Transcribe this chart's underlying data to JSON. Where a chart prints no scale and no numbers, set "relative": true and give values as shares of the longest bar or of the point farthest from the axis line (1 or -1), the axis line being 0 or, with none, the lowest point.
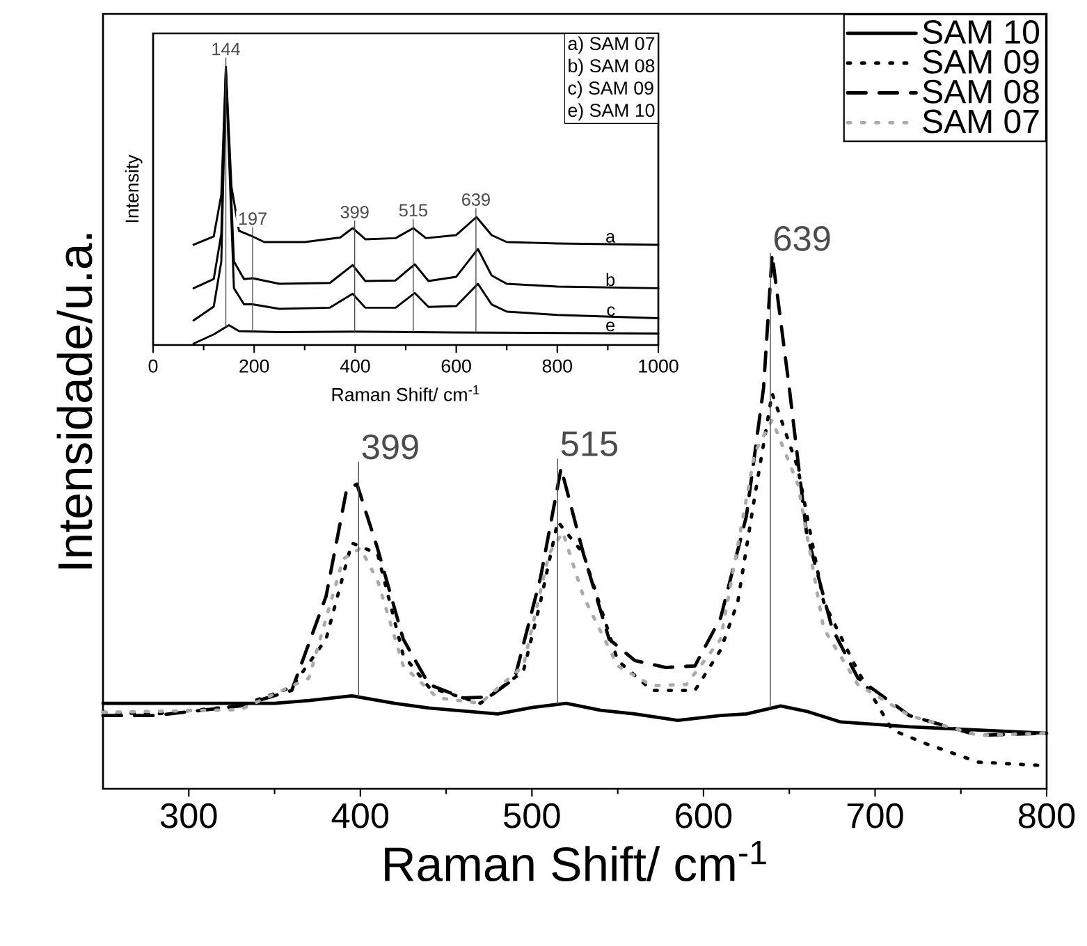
{
  "chart_data": [
    {
      "type": "line",
      "relative": true,
      "xlabel": "Raman Shift/ cm$^{-1}$",
      "ylabel": "Intensidade/u.a.",
      "xlim": [
        250,
        800
      ],
      "xticks": [
        300,
        400,
        500,
        600,
        700,
        800
      ],
      "legend": "top right",
      "series": [
        {
          "name": "SAM 10",
          "color": "#000000",
          "line_style": "solid",
          "x": [
            250,
            300,
            350,
            370,
            395,
            420,
            440,
            480,
            500,
            520,
            540,
            560,
            585,
            610,
            625,
            645,
            660,
            680,
            720,
            760,
            800
          ],
          "values": [
            0.16,
            0.16,
            0.16,
            0.165,
            0.174,
            0.16,
            0.151,
            0.14,
            0.152,
            0.16,
            0.147,
            0.14,
            0.128,
            0.137,
            0.14,
            0.155,
            0.145,
            0.125,
            0.116,
            0.11,
            0.104
          ]
        },
        {
          "name": "SAM 09",
          "color": "#000000",
          "line_style": "dotted",
          "x": [
            250,
            280,
            330,
            360,
            380,
            395,
            410,
            425,
            440,
            470,
            495,
            505,
            515,
            530,
            550,
            570,
            595,
            610,
            620,
            630,
            640,
            655,
            670,
            690,
            710,
            730,
            760,
            800
          ],
          "values": [
            0.143,
            0.14,
            0.155,
            0.19,
            0.28,
            0.46,
            0.44,
            0.25,
            0.19,
            0.16,
            0.22,
            0.35,
            0.5,
            0.44,
            0.24,
            0.184,
            0.184,
            0.26,
            0.35,
            0.55,
            0.74,
            0.6,
            0.35,
            0.22,
            0.11,
            0.084,
            0.05,
            0.043
          ]
        },
        {
          "name": "SAM 08",
          "color": "#000000",
          "line_style": "dashed",
          "x": [
            250,
            280,
            330,
            360,
            380,
            392,
            398,
            410,
            425,
            440,
            460,
            475,
            490,
            505,
            517,
            530,
            545,
            560,
            578,
            595,
            610,
            625,
            635,
            640,
            650,
            660,
            675,
            690,
            720,
            760,
            800
          ],
          "values": [
            0.137,
            0.137,
            0.155,
            0.184,
            0.36,
            0.56,
            0.57,
            0.45,
            0.28,
            0.195,
            0.17,
            0.172,
            0.207,
            0.395,
            0.6,
            0.44,
            0.28,
            0.24,
            0.227,
            0.23,
            0.32,
            0.51,
            0.75,
            1.0,
            0.75,
            0.48,
            0.3,
            0.207,
            0.137,
            0.1,
            0.104
          ]
        },
        {
          "name": "SAM 07",
          "color": "#aaaaaa",
          "line_style": "dotted",
          "x": [
            250,
            330,
            370,
            390,
            400,
            410,
            425,
            445,
            470,
            495,
            510,
            518,
            530,
            550,
            570,
            590,
            610,
            630,
            640,
            655,
            670,
            690,
            720,
            760,
            800
          ],
          "values": [
            0.143,
            0.148,
            0.207,
            0.43,
            0.45,
            0.39,
            0.23,
            0.17,
            0.16,
            0.23,
            0.44,
            0.48,
            0.36,
            0.23,
            0.193,
            0.195,
            0.28,
            0.63,
            0.69,
            0.57,
            0.3,
            0.195,
            0.137,
            0.1,
            0.104
          ]
        }
      ],
      "ref_lines": [
        {
          "axis": "x",
          "value": 399,
          "label": "399"
        },
        {
          "axis": "x",
          "value": 515,
          "label": "515"
        },
        {
          "axis": "x",
          "value": 639,
          "label": "639"
        }
      ]
    },
    {
      "type": "line",
      "relative": true,
      "xlabel": "Raman Shift/ cm$^{-1}$",
      "ylabel": "Intensity",
      "xlim": [
        0,
        1000
      ],
      "xticks": [
        0,
        200,
        400,
        600,
        800,
        1000
      ],
      "series": [
        {
          "name": "a",
          "color": "#000000",
          "x": [
            80,
            120,
            135,
            144,
            155,
            170,
            197,
            220,
            300,
            370,
            395,
            420,
            480,
            515,
            540,
            600,
            640,
            670,
            700,
            800,
            1000
          ],
          "values": [
            0.36,
            0.39,
            0.54,
            1.0,
            0.57,
            0.41,
            0.39,
            0.37,
            0.37,
            0.386,
            0.42,
            0.38,
            0.384,
            0.42,
            0.384,
            0.395,
            0.46,
            0.395,
            0.37,
            0.365,
            0.36
          ]
        },
        {
          "name": "b",
          "color": "#000000",
          "x": [
            80,
            120,
            135,
            144,
            160,
            180,
            197,
            250,
            350,
            395,
            420,
            480,
            518,
            545,
            600,
            643,
            670,
            700,
            800,
            1000
          ],
          "values": [
            0.204,
            0.237,
            0.4,
            0.99,
            0.3,
            0.237,
            0.24,
            0.22,
            0.223,
            0.287,
            0.23,
            0.232,
            0.29,
            0.23,
            0.245,
            0.345,
            0.25,
            0.22,
            0.21,
            0.204
          ]
        },
        {
          "name": "c",
          "color": "#000000",
          "x": [
            80,
            120,
            135,
            144,
            160,
            180,
            197,
            250,
            350,
            395,
            420,
            480,
            518,
            545,
            600,
            643,
            670,
            700,
            800,
            1000
          ],
          "values": [
            0.088,
            0.138,
            0.3,
            0.98,
            0.204,
            0.146,
            0.146,
            0.13,
            0.134,
            0.184,
            0.134,
            0.134,
            0.187,
            0.137,
            0.14,
            0.22,
            0.146,
            0.12,
            0.108,
            0.096
          ]
        },
        {
          "name": "e",
          "color": "#000000",
          "x": [
            80,
            120,
            150,
            170,
            250,
            400,
            600,
            1000
          ],
          "values": [
            0.005,
            0.038,
            0.071,
            0.05,
            0.046,
            0.048,
            0.045,
            0.041
          ]
        }
      ],
      "ref_lines": [
        {
          "axis": "x",
          "value": 144,
          "label": "144"
        },
        {
          "axis": "x",
          "value": 197,
          "label": "197"
        },
        {
          "axis": "x",
          "value": 399,
          "label": "399"
        },
        {
          "axis": "x",
          "value": 515,
          "label": "515"
        },
        {
          "axis": "x",
          "value": 639,
          "label": "639"
        }
      ],
      "annotations": [
        "a) SAM 07",
        "b) SAM 08",
        "c) SAM 09",
        "e) SAM 10"
      ]
    }
  ]
}
